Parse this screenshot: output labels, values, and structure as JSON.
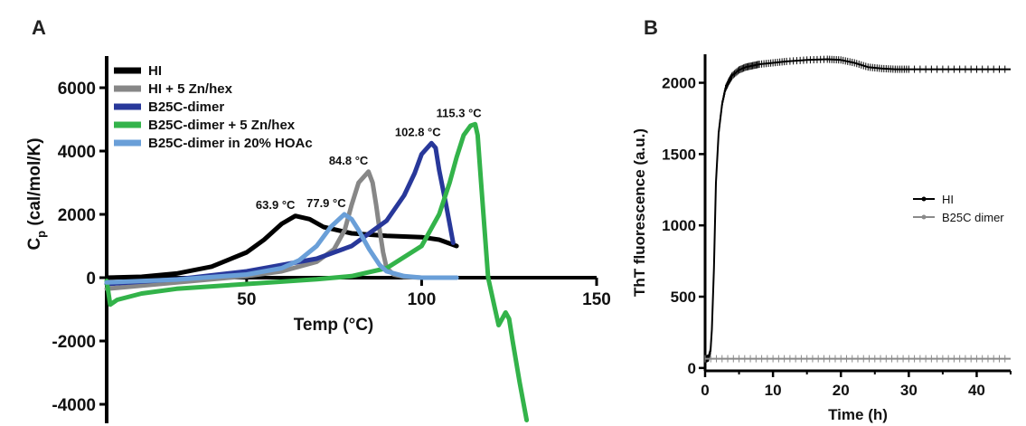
{
  "figure": {
    "panels": [
      {
        "letter": "A",
        "chart_data": {
          "type": "line",
          "xlabel": "Temp (°C)",
          "ylabel_main": "C",
          "ylabel_sub": "p",
          "ylabel_rest": " (cal/mol/K)",
          "xlim": [
            10,
            150
          ],
          "ylim": [
            -4600,
            7000
          ],
          "xticks": [
            50,
            100,
            150
          ],
          "yticks": [
            -4000,
            -2000,
            0,
            2000,
            4000,
            6000
          ],
          "legend_position": "top-left",
          "series": [
            {
              "name": "HI",
              "color": "#000000",
              "x": [
                10,
                20,
                30,
                40,
                50,
                55,
                60,
                63.9,
                68,
                72,
                80,
                90,
                100,
                105,
                110
              ],
              "y": [
                0,
                30,
                130,
                350,
                800,
                1200,
                1700,
                1950,
                1850,
                1600,
                1400,
                1320,
                1280,
                1200,
                1000
              ]
            },
            {
              "name": "HI + 5 Zn/hex",
              "color": "#878787",
              "x": [
                10,
                30,
                50,
                60,
                70,
                75,
                78,
                80,
                82,
                84.8,
                86,
                87,
                88,
                89,
                90,
                92,
                95,
                100,
                105,
                110
              ],
              "y": [
                -350,
                -150,
                50,
                200,
                500,
                900,
                1500,
                2300,
                3000,
                3350,
                3000,
                2300,
                1500,
                800,
                300,
                100,
                30,
                0,
                0,
                0
              ]
            },
            {
              "name": "B25C-dimer",
              "color": "#28389A",
              "x": [
                10,
                30,
                50,
                70,
                80,
                90,
                95,
                98,
                100,
                102.8,
                104,
                105,
                107,
                109
              ],
              "y": [
                -200,
                -50,
                200,
                600,
                1000,
                1800,
                2600,
                3300,
                3900,
                4250,
                4100,
                3400,
                2300,
                1100
              ]
            },
            {
              "name": "B25C-dimer + 5 Zn/hex",
              "color": "#33B34A",
              "x": [
                10,
                11,
                13,
                20,
                30,
                50,
                70,
                80,
                90,
                100,
                105,
                108,
                110,
                112,
                114,
                115.3,
                116,
                117,
                119,
                121,
                122,
                123,
                124,
                125,
                126,
                128,
                130
              ],
              "y": [
                -100,
                -850,
                -700,
                -500,
                -350,
                -200,
                -50,
                50,
                300,
                1000,
                2000,
                3000,
                3800,
                4500,
                4800,
                4850,
                4500,
                3000,
                0,
                -1000,
                -1500,
                -1300,
                -1100,
                -1300,
                -2000,
                -3300,
                -4500
              ]
            },
            {
              "name": "B25C-dimer in 20% HOAc",
              "color": "#6A9FD8",
              "x": [
                10,
                30,
                50,
                60,
                65,
                70,
                74,
                77.9,
                80,
                82,
                85,
                88,
                90,
                95,
                100,
                110
              ],
              "y": [
                -150,
                -60,
                100,
                300,
                550,
                1000,
                1600,
                2000,
                1850,
                1500,
                900,
                400,
                200,
                50,
                0,
                0
              ]
            }
          ],
          "annotations": [
            {
              "text": "63.9 °C",
              "x": 63.9,
              "y": 1950
            },
            {
              "text": "77.9 °C",
              "x": 77.9,
              "y": 2000
            },
            {
              "text": "84.8 °C",
              "x": 84.8,
              "y": 3350
            },
            {
              "text": "102.8 °C",
              "x": 102.8,
              "y": 4250
            },
            {
              "text": "115.3 °C",
              "x": 115.3,
              "y": 4850
            }
          ]
        }
      },
      {
        "letter": "B",
        "chart_data": {
          "type": "line",
          "xlabel": "Time (h)",
          "ylabel": "ThT fluorescence (a.u.)",
          "xlim": [
            0,
            45
          ],
          "ylim": [
            -20,
            2200
          ],
          "xticks": [
            0,
            10,
            20,
            30,
            40
          ],
          "yticks": [
            0,
            500,
            1000,
            1500,
            2000
          ],
          "legend_position": "right",
          "series": [
            {
              "name": "HI",
              "color": "#000000",
              "x": [
                0,
                0.5,
                0.8,
                1,
                1.3,
                1.6,
                2,
                2.5,
                3,
                3.5,
                4,
                5,
                6,
                7,
                8,
                10,
                12,
                15,
                18,
                20,
                22,
                24,
                26,
                28,
                30,
                35,
                40,
                45
              ],
              "y": [
                60,
                70,
                120,
                270,
                700,
                1300,
                1650,
                1850,
                1960,
                2010,
                2050,
                2090,
                2110,
                2120,
                2130,
                2140,
                2150,
                2160,
                2165,
                2160,
                2140,
                2110,
                2100,
                2095,
                2095,
                2095,
                2095,
                2095
              ]
            },
            {
              "name": "B25C dimer",
              "color": "#8A8A8A",
              "x": [
                0,
                5,
                10,
                15,
                20,
                25,
                30,
                35,
                40,
                45
              ],
              "y": [
                65,
                65,
                65,
                65,
                65,
                65,
                65,
                65,
                65,
                65
              ]
            }
          ]
        }
      }
    ]
  }
}
